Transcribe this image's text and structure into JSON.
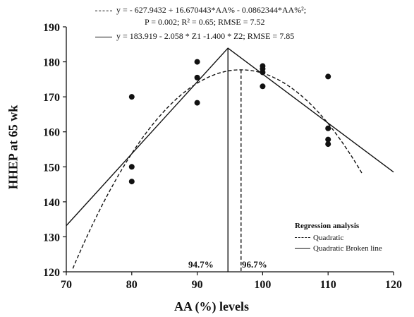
{
  "equations": {
    "quadratic_line1": "y = - 627.9432 + 16.670443*AA% - 0.0862344*AA%²;",
    "quadratic_line2": "P = 0.002; R² = 0.65; RMSE = 7.52",
    "broken_line": "y = 183.919 - 2.058 * Z1 -1.400 * Z2; RMSE = 7.85"
  },
  "legend": {
    "title": "Regression analysis",
    "quadratic": "Quadratic",
    "broken": "Quadratic Broken line"
  },
  "markers": {
    "left": "94.7%",
    "right": "96.7%"
  },
  "chart_data": {
    "type": "scatter",
    "xlabel": "AA (%) levels",
    "ylabel": "HHEP at 65 wk",
    "xlim": [
      70,
      120
    ],
    "ylim": [
      120,
      190
    ],
    "xticks": [
      70,
      80,
      90,
      100,
      110,
      120
    ],
    "yticks": [
      120,
      130,
      140,
      150,
      160,
      170,
      180,
      190
    ],
    "grid": false,
    "legend_position": "bottom-right",
    "points": [
      {
        "x": 80,
        "y": 170.0
      },
      {
        "x": 80,
        "y": 150.0
      },
      {
        "x": 80,
        "y": 145.8
      },
      {
        "x": 90,
        "y": 180.0
      },
      {
        "x": 90,
        "y": 175.5
      },
      {
        "x": 90,
        "y": 168.3
      },
      {
        "x": 100,
        "y": 178.8
      },
      {
        "x": 100,
        "y": 178.0
      },
      {
        "x": 100,
        "y": 177.0
      },
      {
        "x": 100,
        "y": 173.0
      },
      {
        "x": 110,
        "y": 175.8
      },
      {
        "x": 110,
        "y": 161.0
      },
      {
        "x": 110,
        "y": 157.8
      },
      {
        "x": 110,
        "y": 156.5
      }
    ],
    "quadratic": {
      "a": -627.9432,
      "b": 16.670443,
      "c": -0.0862344,
      "x_range": [
        70,
        115.3
      ],
      "optimum_x": 96.7
    },
    "broken_line": {
      "x": [
        70,
        94.7,
        120
      ],
      "y": [
        133.2,
        183.9,
        148.5
      ],
      "breakpoint_x": 94.7
    },
    "colors": {
      "ink": "#111111"
    }
  }
}
